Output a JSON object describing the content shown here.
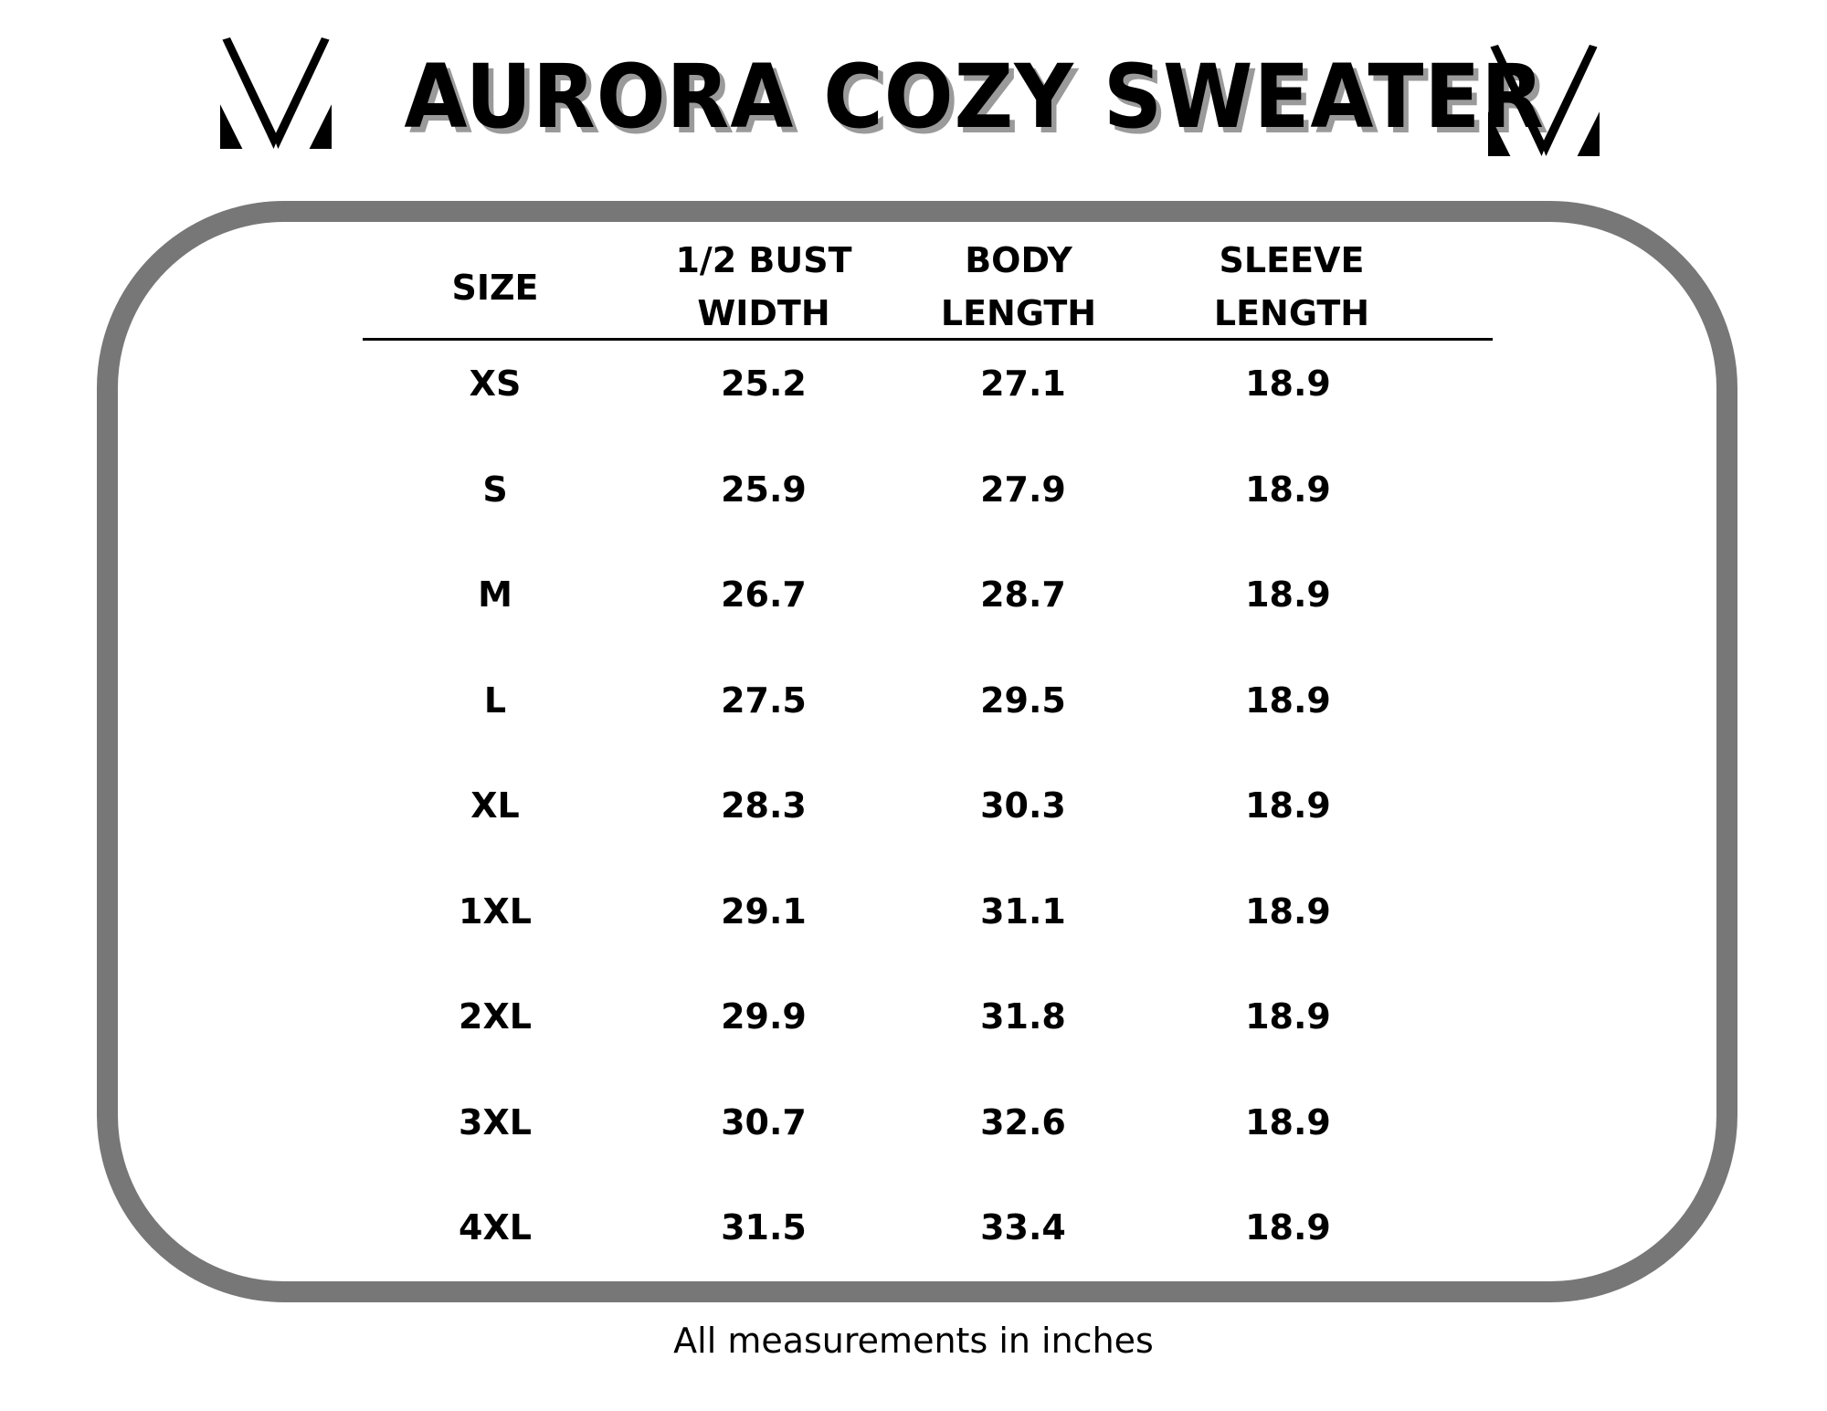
{
  "title": "AURORA COZY SWEATER",
  "logo_icon": "v-logo-icon",
  "border_color": "#777777",
  "table": {
    "headers": [
      {
        "line1": "SIZE",
        "line2": ""
      },
      {
        "line1": "1/2 BUST",
        "line2": "WIDTH"
      },
      {
        "line1": "BODY",
        "line2": "LENGTH"
      },
      {
        "line1": "SLEEVE",
        "line2": "LENGTH"
      }
    ],
    "rows": [
      [
        "XS",
        "25.2",
        "27.1",
        "18.9"
      ],
      [
        "S",
        "25.9",
        "27.9",
        "18.9"
      ],
      [
        "M",
        "26.7",
        "28.7",
        "18.9"
      ],
      [
        "L",
        "27.5",
        "29.5",
        "18.9"
      ],
      [
        "XL",
        "28.3",
        "30.3",
        "18.9"
      ],
      [
        "1XL",
        "29.1",
        "31.1",
        "18.9"
      ],
      [
        "2XL",
        "29.9",
        "31.8",
        "18.9"
      ],
      [
        "3XL",
        "30.7",
        "32.6",
        "18.9"
      ],
      [
        "4XL",
        "31.5",
        "33.4",
        "18.9"
      ]
    ]
  },
  "footer": "All measurements in inches"
}
